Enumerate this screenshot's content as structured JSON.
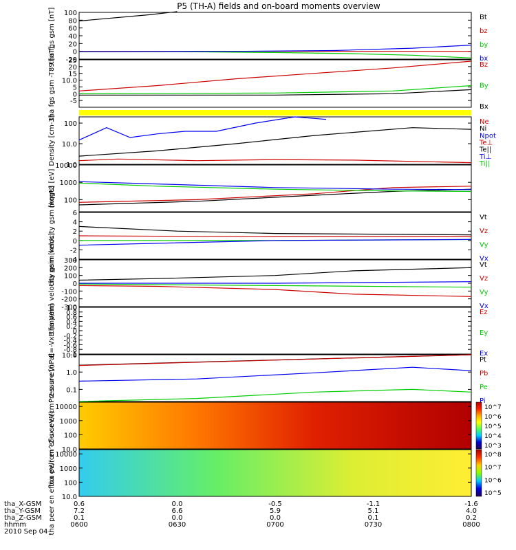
{
  "title": "P5 (TH-A) fields and on-board moments overview",
  "colors": {
    "black": "#000000",
    "red": "#cc0000",
    "green": "#00cc00",
    "blue": "#0000ee",
    "yellow": "#ffff00"
  },
  "chart_data": [
    {
      "type": "line",
      "ylabel": "tha fgs gsm [nT]",
      "ylim": [
        -20,
        100
      ],
      "yticks": [
        -20,
        0,
        20,
        40,
        60,
        80,
        100
      ],
      "legend": [
        "Bt",
        "bz",
        "by",
        "bx"
      ],
      "series": [
        {
          "name": "Bt",
          "x": [
            0,
            0.18,
            0.25
          ],
          "values": [
            78,
            94,
            102
          ]
        },
        {
          "name": "bz",
          "x": [
            0,
            1
          ],
          "values": [
            0,
            0
          ]
        },
        {
          "name": "by",
          "x": [
            0,
            0.25,
            0.5,
            0.7,
            0.85,
            1
          ],
          "values": [
            -1,
            -1,
            -3,
            -6,
            -10,
            -17
          ]
        },
        {
          "name": "bx",
          "x": [
            0,
            0.4,
            0.65,
            0.85,
            1
          ],
          "values": [
            -1,
            0,
            2,
            8,
            16
          ]
        }
      ]
    },
    {
      "type": "line",
      "ylabel": "tha fgs gsm -T89 [nT]",
      "ylim": [
        -10,
        25
      ],
      "yticks": [
        -5,
        0,
        5,
        10,
        15,
        20,
        25
      ],
      "legend": [
        "Bz",
        "By",
        "Bx"
      ],
      "series": [
        {
          "name": "Bz",
          "x": [
            0,
            0.2,
            0.4,
            0.6,
            0.8,
            1
          ],
          "values": [
            2,
            6,
            11,
            15,
            19,
            24
          ]
        },
        {
          "name": "By",
          "x": [
            0,
            0.5,
            0.8,
            1
          ],
          "values": [
            0,
            0.5,
            2,
            6
          ]
        },
        {
          "name": "Bx",
          "x": [
            0,
            0.5,
            0.8,
            1
          ],
          "values": [
            -1,
            -1,
            0,
            3
          ]
        }
      ]
    },
    {
      "type": "line",
      "ylabel": "Density [cm-3]",
      "ylog": true,
      "ylim": [
        1,
        200
      ],
      "yticks": [
        1,
        10,
        100
      ],
      "legend": [
        "Ne",
        "Ni",
        "Npot",
        "Te⊥",
        "Te||",
        "Ti⊥",
        "Ti||"
      ],
      "series": [
        {
          "name": "Ne",
          "x": [
            0,
            0.1,
            0.3,
            0.5,
            0.7,
            1
          ],
          "values": [
            1.5,
            1.8,
            1.5,
            1.7,
            1.6,
            1.2
          ]
        },
        {
          "name": "Ni",
          "x": [
            0,
            0.2,
            0.4,
            0.6,
            0.85,
            1
          ],
          "values": [
            2.5,
            4.5,
            10,
            25,
            60,
            50
          ]
        },
        {
          "name": "Npot",
          "x": [
            0,
            0.07,
            0.13,
            0.2,
            0.27,
            0.35,
            0.45,
            0.55,
            0.63
          ],
          "values": [
            15,
            60,
            20,
            30,
            40,
            40,
            100,
            200,
            150
          ]
        }
      ]
    },
    {
      "type": "line",
      "ylabel": "mqgt3 [eV]",
      "ylog": true,
      "ylim": [
        20,
        10000
      ],
      "yticks": [
        100,
        1000,
        10000
      ],
      "series": [
        {
          "name": "Te⊥",
          "x": [
            0,
            0.3,
            0.6,
            0.8,
            1
          ],
          "values": [
            70,
            100,
            220,
            500,
            600
          ]
        },
        {
          "name": "Te||",
          "x": [
            0,
            0.3,
            0.6,
            0.8,
            1
          ],
          "values": [
            50,
            80,
            180,
            300,
            400
          ]
        },
        {
          "name": "Ti⊥",
          "x": [
            0,
            0.2,
            0.5,
            0.8,
            1
          ],
          "values": [
            1100,
            800,
            500,
            400,
            380
          ]
        },
        {
          "name": "Ti||",
          "x": [
            0,
            0.2,
            0.5,
            0.8,
            1
          ],
          "values": [
            900,
            600,
            400,
            320,
            300
          ]
        }
      ]
    },
    {
      "type": "line",
      "ylabel": "tha peim velocity gsm [km/s]",
      "ylim": [
        -4,
        6
      ],
      "yticks": [
        -4,
        -2,
        0,
        2,
        4,
        6
      ],
      "legend": [
        "Vt",
        "Vz",
        "Vy",
        "Vx"
      ],
      "series": [
        {
          "name": "Vt",
          "x": [
            0,
            0.25,
            0.5,
            1
          ],
          "values": [
            3,
            2,
            1.5,
            1.2
          ]
        },
        {
          "name": "Vz",
          "x": [
            0,
            0.5,
            1
          ],
          "values": [
            1,
            0.8,
            0.8
          ]
        },
        {
          "name": "Vy",
          "x": [
            0,
            0.5,
            1
          ],
          "values": [
            0,
            0,
            0.2
          ]
        },
        {
          "name": "Vx",
          "x": [
            0,
            0.5,
            1
          ],
          "values": [
            -1,
            0,
            0.2
          ]
        }
      ]
    },
    {
      "type": "line",
      "ylabel": "tha peim velocity gsm [km/s]",
      "ylim": [
        -300,
        300
      ],
      "yticks": [
        -300,
        -200,
        -100,
        0,
        100,
        200,
        300
      ],
      "legend": [
        "Vt",
        "Vz",
        "Vy",
        "Vx"
      ],
      "series": [
        {
          "name": "Vt",
          "x": [
            0,
            0.2,
            0.5,
            0.7,
            1
          ],
          "values": [
            40,
            60,
            100,
            160,
            200
          ]
        },
        {
          "name": "Vz",
          "x": [
            0,
            0.2,
            0.5,
            0.7,
            1
          ],
          "values": [
            -30,
            -40,
            -80,
            -140,
            -170
          ]
        },
        {
          "name": "Vy",
          "x": [
            0,
            0.5,
            1
          ],
          "values": [
            -10,
            -30,
            -50
          ]
        },
        {
          "name": "Vx",
          "x": [
            0,
            0.5,
            1
          ],
          "values": [
            0,
            0,
            20
          ]
        }
      ]
    },
    {
      "type": "line",
      "ylabel": "E=-VxB [mV/m]",
      "ylim": [
        -1,
        1
      ],
      "yticks": [
        -1,
        -0.8,
        -0.6,
        -0.4,
        -0.2,
        0,
        0.2,
        0.4,
        0.6,
        0.8,
        1
      ],
      "legend": [
        "Ez",
        "Ey",
        "Ex"
      ],
      "series": []
    },
    {
      "type": "line",
      "ylabel": "Pressure [nPa]",
      "ylog": true,
      "ylim": [
        0.02,
        10
      ],
      "yticks": [
        0.1,
        1.0,
        10.0
      ],
      "legend": [
        "Pt",
        "Pb",
        "Pe",
        "Pi"
      ],
      "series": [
        {
          "name": "Pt",
          "x": [
            0,
            1
          ],
          "values": [
            2.5,
            10
          ]
        },
        {
          "name": "Pb",
          "x": [
            0,
            1
          ],
          "values": [
            2.4,
            10
          ]
        },
        {
          "name": "Pe",
          "x": [
            0,
            0.3,
            0.6,
            0.85,
            1
          ],
          "values": [
            0.02,
            0.03,
            0.07,
            0.1,
            0.07
          ]
        },
        {
          "name": "Pi",
          "x": [
            0,
            0.3,
            0.6,
            0.85,
            1
          ],
          "values": [
            0.3,
            0.4,
            0.9,
            1.9,
            1.2
          ]
        }
      ]
    },
    {
      "type": "heatmap",
      "ylabel": "tha peir en eflux eV/(cm^2-s-sr-eV)",
      "ylog": true,
      "ylim": [
        10,
        20000
      ],
      "yticks": [
        10,
        100,
        1000,
        10000
      ],
      "colorbar": {
        "min": 1000,
        "max": 10000000,
        "ticks": [
          "10^7",
          "10^6",
          "10^5",
          "10^4",
          "10^3"
        ]
      }
    },
    {
      "type": "heatmap",
      "ylabel": "tha peer en eflux eV/(cm^2-s-sr-eV)",
      "ylog": true,
      "ylim": [
        10,
        20000
      ],
      "yticks": [
        10,
        100,
        1000,
        10000
      ],
      "colorbar": {
        "min": 100000,
        "max": 100000000,
        "ticks": [
          "10^8",
          "10^7",
          "10^6",
          "10^5"
        ]
      }
    }
  ],
  "time_axis": {
    "rows": [
      {
        "label": "tha_X-GSM",
        "values": [
          "0.6",
          "0.0",
          "-0.5",
          "-1.1",
          "-1.6"
        ]
      },
      {
        "label": "tha_Y-GSM",
        "values": [
          "7.2",
          "6.6",
          "5.9",
          "5.1",
          "4.0"
        ]
      },
      {
        "label": "tha_Z-GSM",
        "values": [
          "0.1",
          "0.0",
          "0.0",
          "0.1",
          "0.2"
        ]
      },
      {
        "label": "hhmm",
        "values": [
          "0600",
          "0630",
          "0700",
          "0730",
          "0800"
        ]
      }
    ],
    "date": "2010 Sep 04"
  }
}
